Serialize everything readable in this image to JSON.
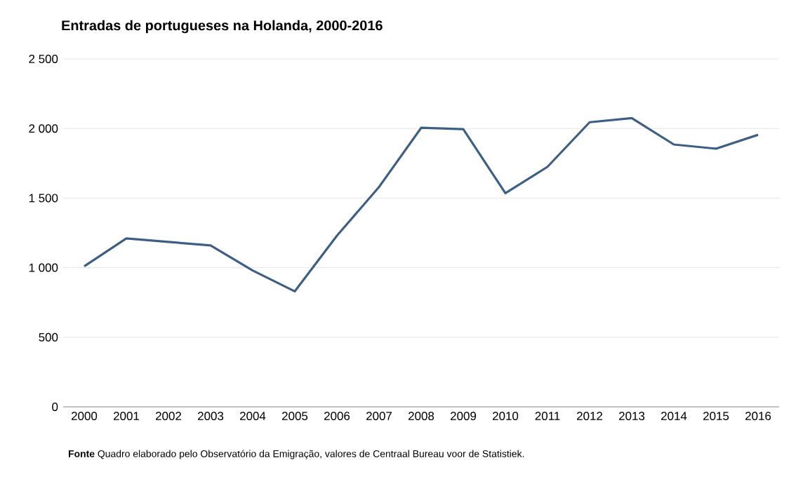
{
  "chart_data": {
    "type": "line",
    "title": "Entradas de portugueses na Holanda, 2000-2016",
    "categories": [
      "2000",
      "2001",
      "2002",
      "2003",
      "2004",
      "2005",
      "2006",
      "2007",
      "2008",
      "2009",
      "2010",
      "2011",
      "2012",
      "2013",
      "2014",
      "2015",
      "2016"
    ],
    "series": [
      {
        "color": "#3e5f85",
        "values": [
          1010,
          1210,
          1185,
          1160,
          980,
          830,
          1230,
          1580,
          2005,
          1995,
          1535,
          1725,
          2045,
          2075,
          1885,
          1855,
          1955
        ]
      }
    ],
    "ylim": [
      0,
      2500
    ],
    "yticks": [
      0,
      500,
      {
        "value": 1000,
        "label": "1 000"
      },
      {
        "value": 1500,
        "label": "1 500"
      },
      {
        "value": 2000,
        "label": "2 000"
      },
      {
        "value": 2500,
        "label": "2 500"
      }
    ],
    "grid": "y",
    "marker": "none",
    "line_style": "solid",
    "annotations": [
      "**Fonte** Quadro elaborado pelo Observatório da Emigração, valores de Centraal Bureau voor de Statistiek."
    ]
  }
}
